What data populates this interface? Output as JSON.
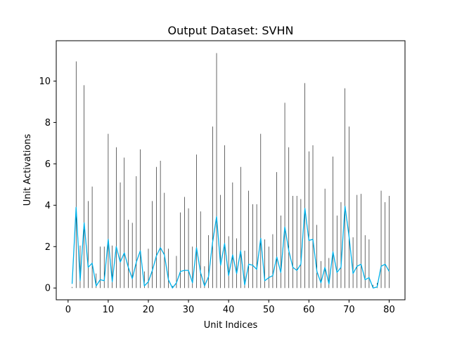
{
  "chart_data": {
    "type": "line",
    "title": "Output Dataset: SVHN",
    "xlabel": "Unit Indices",
    "ylabel": "Unit Activations",
    "xlim": [
      -2.95,
      83.95
    ],
    "ylim": [
      -0.57,
      11.95
    ],
    "xticks": [
      0,
      10,
      20,
      30,
      40,
      50,
      60,
      70,
      80
    ],
    "yticks": [
      0,
      2,
      4,
      6,
      8,
      10
    ],
    "grid": false,
    "colors": {
      "bars": "#000000",
      "line": "#00b0e8"
    },
    "x": [
      1,
      2,
      3,
      4,
      5,
      6,
      7,
      8,
      9,
      10,
      11,
      12,
      13,
      14,
      15,
      16,
      17,
      18,
      19,
      20,
      21,
      22,
      23,
      24,
      25,
      26,
      27,
      28,
      29,
      30,
      31,
      32,
      33,
      34,
      35,
      36,
      37,
      38,
      39,
      40,
      41,
      42,
      43,
      44,
      45,
      46,
      47,
      48,
      49,
      50,
      51,
      52,
      53,
      54,
      55,
      56,
      57,
      58,
      59,
      60,
      61,
      62,
      63,
      64,
      65,
      66,
      67,
      68,
      69,
      70,
      71,
      72,
      73,
      74,
      75,
      76,
      77,
      78,
      79,
      80
    ],
    "series": [
      {
        "type": "bar",
        "values": [
          0.05,
          10.95,
          2.05,
          9.8,
          4.2,
          4.9,
          0.7,
          2.0,
          2.0,
          7.45,
          2.05,
          6.8,
          5.1,
          6.3,
          3.3,
          3.15,
          5.4,
          6.7,
          0.8,
          1.9,
          4.2,
          5.85,
          6.15,
          4.6,
          1.9,
          0.1,
          1.55,
          3.65,
          4.4,
          3.85,
          2.0,
          6.45,
          3.7,
          1.05,
          2.55,
          7.8,
          11.35,
          4.5,
          6.9,
          2.5,
          5.1,
          2.4,
          5.85,
          1.8,
          4.7,
          4.05,
          4.05,
          7.45,
          2.35,
          2.0,
          2.6,
          5.6,
          3.5,
          8.95,
          6.8,
          4.45,
          4.45,
          4.3,
          9.9,
          6.6,
          6.9,
          3.05,
          1.3,
          4.8,
          1.45,
          6.35,
          3.5,
          4.15,
          9.65,
          7.8,
          2.45,
          4.5,
          4.55,
          2.55,
          2.35,
          0.15,
          0.25,
          4.7,
          4.15,
          4.45
        ]
      },
      {
        "type": "line",
        "values": [
          0.2,
          3.9,
          0.35,
          3.15,
          1.0,
          1.2,
          0.1,
          0.4,
          0.35,
          2.35,
          0.3,
          2.0,
          1.25,
          1.7,
          1.0,
          0.45,
          1.25,
          1.8,
          0.1,
          0.3,
          0.85,
          1.55,
          1.95,
          1.6,
          0.4,
          0.0,
          0.25,
          0.8,
          0.85,
          0.85,
          0.25,
          1.95,
          0.75,
          0.1,
          0.55,
          2.2,
          3.45,
          1.1,
          2.15,
          0.6,
          1.6,
          0.7,
          1.8,
          0.15,
          1.15,
          1.1,
          0.9,
          2.4,
          0.35,
          0.5,
          0.6,
          1.5,
          0.75,
          2.95,
          1.8,
          1.0,
          0.85,
          1.15,
          3.85,
          2.3,
          2.35,
          0.8,
          0.25,
          1.0,
          0.2,
          1.75,
          0.75,
          1.0,
          3.95,
          2.5,
          0.7,
          1.05,
          1.15,
          0.4,
          0.5,
          0.0,
          0.05,
          1.05,
          1.15,
          0.8
        ]
      }
    ]
  }
}
